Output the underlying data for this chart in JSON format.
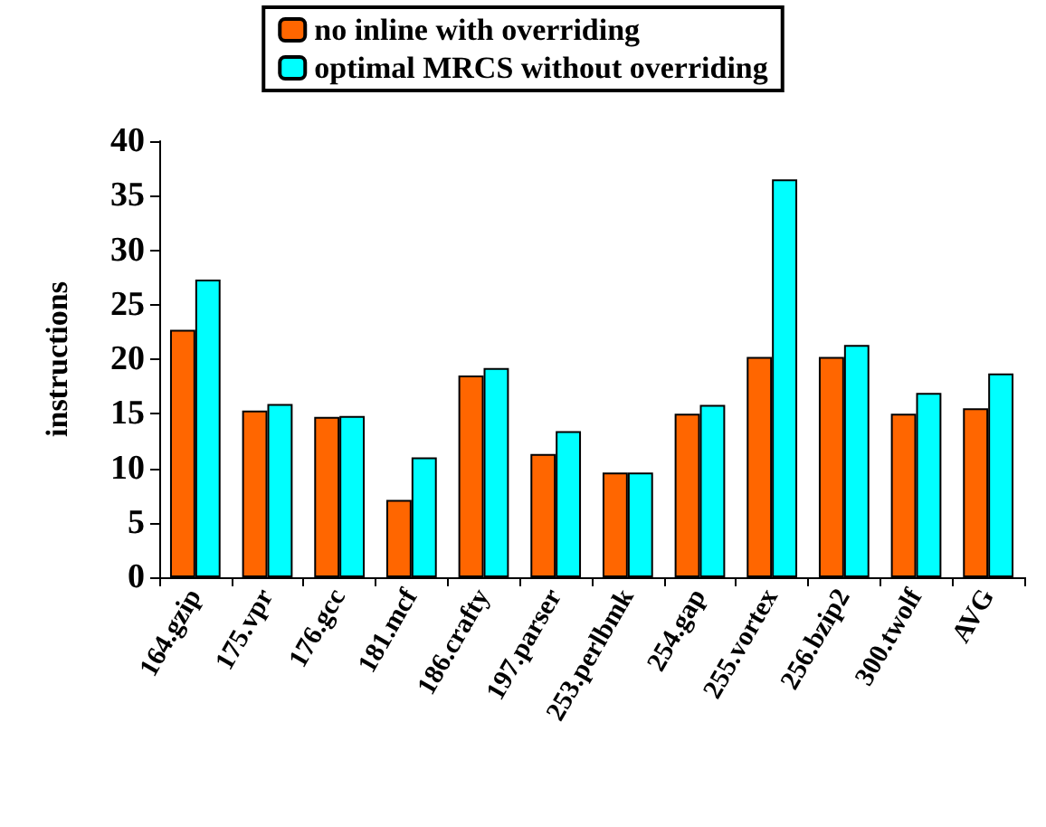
{
  "chart_data": {
    "type": "bar",
    "ylabel": "instructions",
    "categories": [
      "164.gzip",
      "175.vpr",
      "176.gcc",
      "181.mcf",
      "186.crafty",
      "197.parser",
      "253.perlbmk",
      "254.gap",
      "255.vortex",
      "256.bzip2",
      "300.twolf",
      "AVG"
    ],
    "series": [
      {
        "name": "no inline with overriding",
        "color": "#ff6600",
        "values": [
          22.7,
          15.3,
          14.7,
          7.1,
          18.5,
          11.3,
          9.6,
          15.0,
          20.2,
          20.2,
          15.0,
          15.5
        ]
      },
      {
        "name": "optimal MRCS without overriding",
        "color": "#00ffff",
        "values": [
          27.3,
          15.9,
          14.8,
          11.0,
          19.2,
          13.4,
          9.6,
          15.8,
          36.5,
          21.3,
          16.9,
          18.7
        ]
      }
    ],
    "ylim": [
      0,
      40
    ],
    "yticks": [
      0,
      5,
      10,
      15,
      20,
      25,
      30,
      35,
      40
    ],
    "grid": false,
    "legend": "top"
  }
}
